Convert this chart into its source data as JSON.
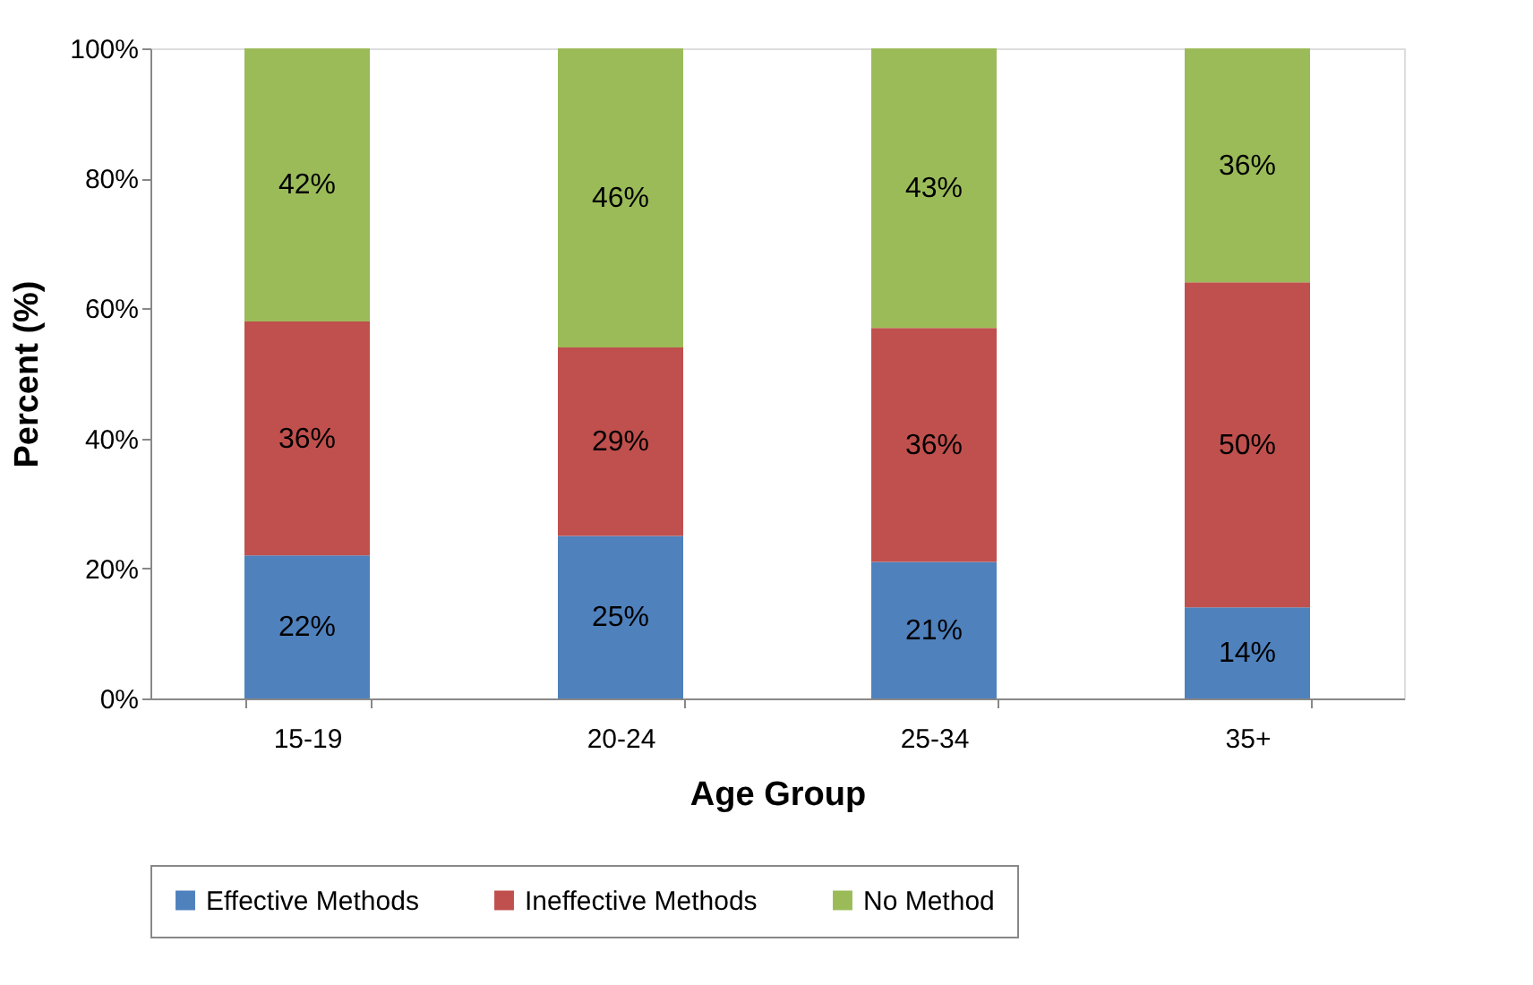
{
  "chart_data": {
    "type": "bar",
    "stacked": true,
    "xlabel": "Age Group",
    "ylabel": "Percent (%)",
    "categories": [
      "15-19",
      "20-24",
      "25-34",
      "35+"
    ],
    "series": [
      {
        "name": "Effective Methods",
        "color": "#4f81bd",
        "values": [
          22,
          25,
          21,
          14
        ],
        "value_labels": [
          "22%",
          "25%",
          "21%",
          "14%"
        ]
      },
      {
        "name": "Ineffective Methods",
        "color": "#c0504d",
        "values": [
          36,
          29,
          36,
          50
        ],
        "value_labels": [
          "36%",
          "29%",
          "36%",
          "50%"
        ]
      },
      {
        "name": "No Method",
        "color": "#9bbb59",
        "values": [
          42,
          46,
          43,
          36
        ],
        "value_labels": [
          "42%",
          "46%",
          "43%",
          "36%"
        ]
      }
    ],
    "ylim": [
      0,
      100
    ],
    "yticks": [
      {
        "value": 0,
        "label": "0%"
      },
      {
        "value": 20,
        "label": "20%"
      },
      {
        "value": 40,
        "label": "40%"
      },
      {
        "value": 60,
        "label": "60%"
      },
      {
        "value": 80,
        "label": "80%"
      },
      {
        "value": 100,
        "label": "100%"
      }
    ],
    "grid": false,
    "legend": "bottom"
  }
}
